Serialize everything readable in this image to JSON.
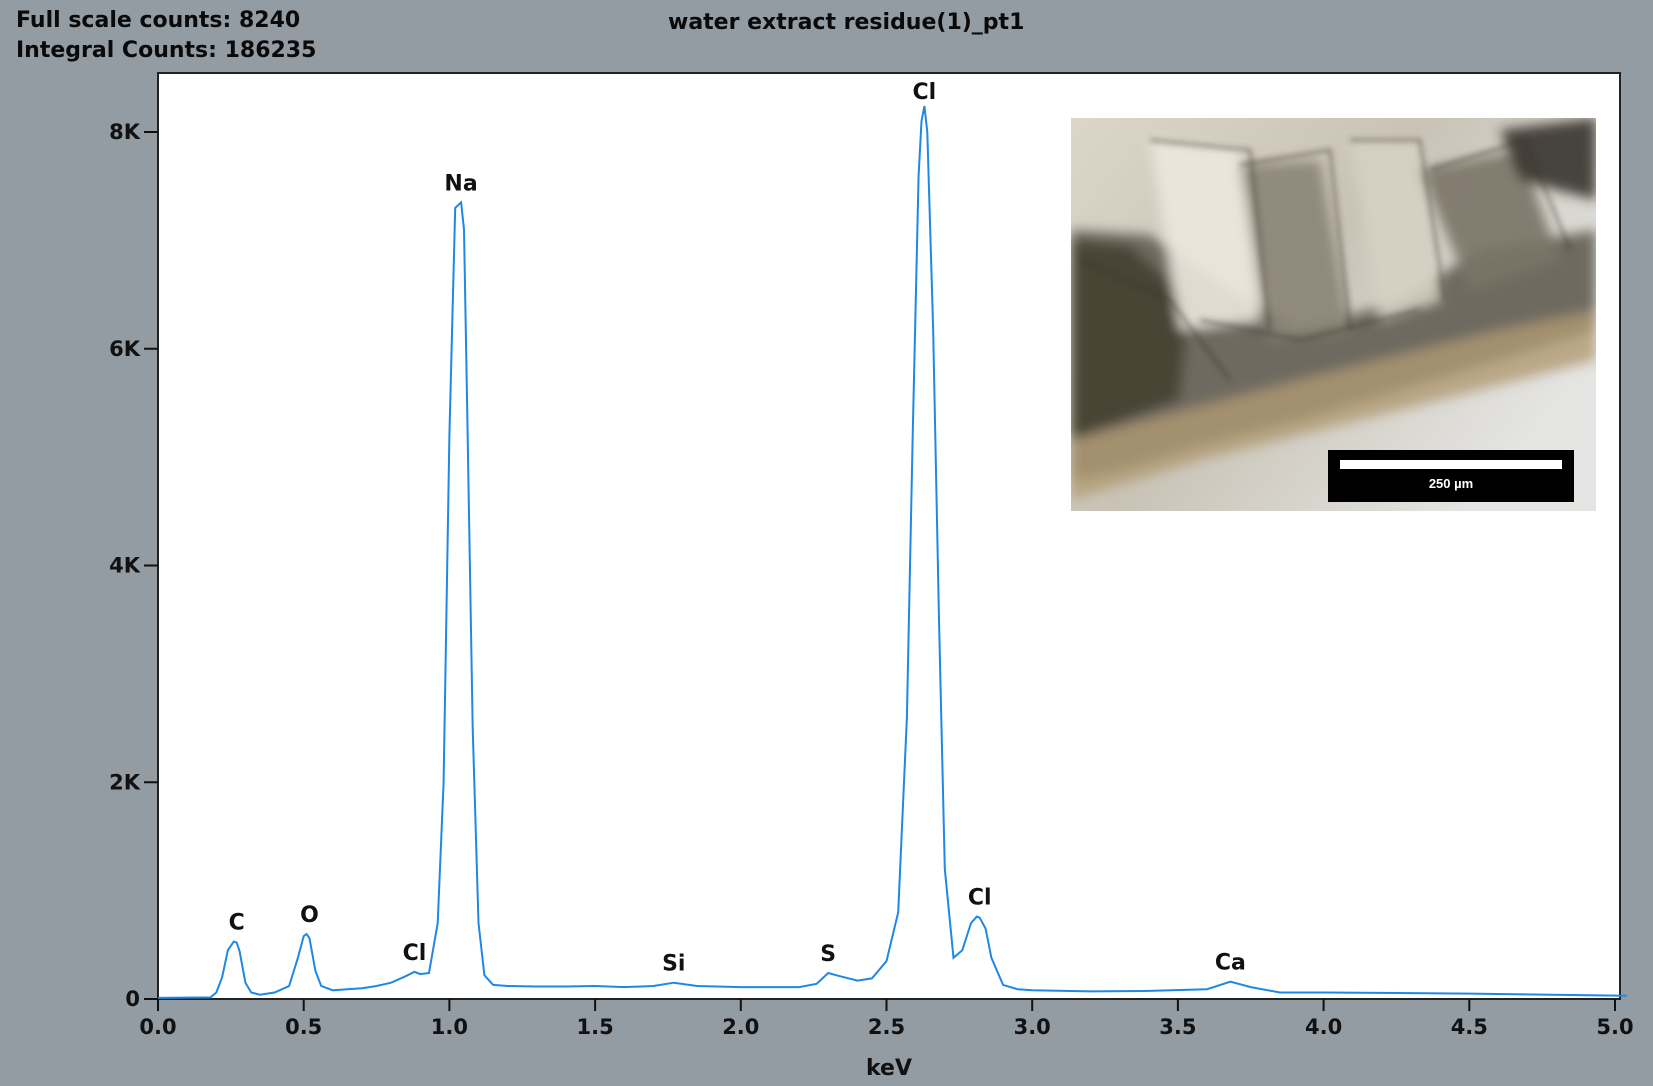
{
  "header": {
    "full_scale": "Full scale counts: 8240",
    "integral": "Integral Counts: 186235",
    "title": "water extract residue(1)_pt1"
  },
  "inset": {
    "scale_bar_label": "250 µm"
  },
  "colors": {
    "background": "#939ba3",
    "plot_bg": "#ffffff",
    "spectrum": "#1f88e5"
  },
  "chart_data": {
    "type": "line",
    "title": "water extract residue(1)_pt1",
    "xlabel": "keV",
    "ylabel": "",
    "xlim": [
      0,
      5.05
    ],
    "ylim": [
      0,
      8240
    ],
    "x_ticks": [
      0.0,
      0.5,
      1.0,
      1.5,
      2.0,
      2.5,
      3.0,
      3.5,
      4.0,
      4.5,
      5.0
    ],
    "x_tick_labels": [
      "0.0",
      "0.5",
      "1.0",
      "1.5",
      "2.0",
      "2.5",
      "3.0",
      "3.5",
      "4.0",
      "4.5",
      "5.0"
    ],
    "y_ticks": [
      0,
      2000,
      4000,
      6000,
      8000
    ],
    "y_tick_labels": [
      "0",
      "2K",
      "4K",
      "6K",
      "8K"
    ],
    "grid": false,
    "series": [
      {
        "x": [
          0.0,
          0.18,
          0.2,
          0.22,
          0.24,
          0.26,
          0.27,
          0.28,
          0.3,
          0.32,
          0.35,
          0.4,
          0.45,
          0.48,
          0.5,
          0.51,
          0.52,
          0.54,
          0.56,
          0.6,
          0.65,
          0.7,
          0.75,
          0.8,
          0.85,
          0.88,
          0.9,
          0.93,
          0.96,
          0.98,
          1.0,
          1.02,
          1.04,
          1.05,
          1.06,
          1.08,
          1.1,
          1.12,
          1.15,
          1.2,
          1.3,
          1.4,
          1.5,
          1.6,
          1.7,
          1.77,
          1.85,
          2.0,
          2.1,
          2.2,
          2.26,
          2.3,
          2.34,
          2.4,
          2.45,
          2.5,
          2.54,
          2.57,
          2.59,
          2.61,
          2.62,
          2.63,
          2.64,
          2.66,
          2.68,
          2.7,
          2.73,
          2.76,
          2.79,
          2.81,
          2.82,
          2.84,
          2.86,
          2.9,
          2.95,
          3.0,
          3.2,
          3.4,
          3.6,
          3.68,
          3.75,
          3.85,
          4.0,
          4.5,
          5.04
        ],
        "y": [
          10,
          15,
          60,
          200,
          450,
          530,
          520,
          440,
          150,
          60,
          40,
          60,
          120,
          380,
          580,
          600,
          560,
          260,
          120,
          80,
          90,
          100,
          120,
          150,
          210,
          250,
          230,
          240,
          700,
          2000,
          5200,
          7300,
          7350,
          7100,
          5600,
          2500,
          700,
          220,
          130,
          120,
          115,
          115,
          120,
          110,
          120,
          150,
          120,
          110,
          110,
          110,
          140,
          240,
          210,
          170,
          190,
          350,
          800,
          2600,
          5200,
          7600,
          8100,
          8240,
          8000,
          6200,
          3500,
          1200,
          380,
          450,
          700,
          760,
          750,
          650,
          380,
          130,
          90,
          80,
          70,
          75,
          90,
          160,
          110,
          60,
          60,
          50,
          30
        ]
      }
    ],
    "peak_labels": [
      {
        "label": "C",
        "x": 0.27,
        "y": 530
      },
      {
        "label": "O",
        "x": 0.52,
        "y": 600
      },
      {
        "label": "Cl",
        "x": 0.88,
        "y": 250
      },
      {
        "label": "Na",
        "x": 1.04,
        "y": 7350
      },
      {
        "label": "Si",
        "x": 1.77,
        "y": 150
      },
      {
        "label": "S",
        "x": 2.3,
        "y": 240
      },
      {
        "label": "Cl",
        "x": 2.63,
        "y": 8240
      },
      {
        "label": "Cl",
        "x": 2.82,
        "y": 760
      },
      {
        "label": "Ca",
        "x": 3.68,
        "y": 160
      }
    ]
  }
}
